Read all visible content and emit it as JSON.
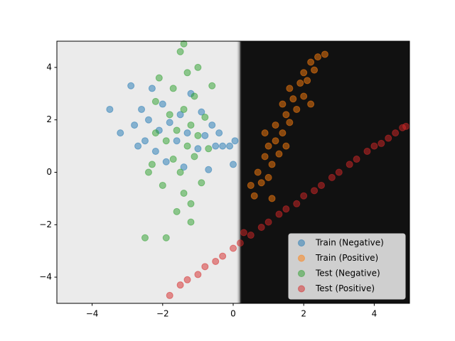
{
  "chart_data": {
    "type": "scatter",
    "xlim": [
      -5,
      5
    ],
    "ylim": [
      -5,
      5
    ],
    "xticks": [
      {
        "value": -4,
        "label": "−4"
      },
      {
        "value": -2,
        "label": "−2"
      },
      0,
      2,
      4
    ],
    "yticks": [
      {
        "value": -4,
        "label": "−4"
      },
      {
        "value": -2,
        "label": "−2"
      },
      0,
      2,
      4
    ],
    "legend": "lower right",
    "decision_boundary": 0.2,
    "region_colors": [
      "#ebebeb",
      "#111111"
    ],
    "series": [
      {
        "name": "Train (Negative)",
        "color": "#1f77b4",
        "x": [
          -3.5,
          -3.2,
          -2.9,
          -2.8,
          -2.6,
          -2.5,
          -2.4,
          -2.3,
          -2.2,
          -2.1,
          -2.0,
          -1.9,
          -1.8,
          -1.6,
          -1.5,
          -1.4,
          -1.3,
          -1.2,
          -1.0,
          -0.9,
          -0.8,
          -0.7,
          -0.6,
          -0.5,
          -0.4,
          -0.3,
          -0.1,
          0.0,
          0.05,
          -2.7
        ],
        "y": [
          2.4,
          1.5,
          3.3,
          1.8,
          2.4,
          1.2,
          2.0,
          3.2,
          0.8,
          1.6,
          2.6,
          0.4,
          1.9,
          1.2,
          2.2,
          0.2,
          1.5,
          3.0,
          0.9,
          2.3,
          1.4,
          0.1,
          1.8,
          1.0,
          1.5,
          1.0,
          1.0,
          0.3,
          1.2,
          1.0
        ]
      },
      {
        "name": "Train (Positive)",
        "color": "#ff7f0e",
        "x": [
          0.6,
          0.8,
          0.7,
          1.0,
          0.9,
          1.1,
          1.0,
          1.2,
          1.3,
          1.2,
          1.4,
          1.5,
          1.4,
          1.6,
          1.7,
          1.6,
          1.8,
          1.9,
          2.0,
          2.0,
          2.1,
          2.2,
          2.3,
          2.4,
          2.6,
          1.1,
          0.9,
          2.2,
          0.5,
          1.5
        ],
        "y": [
          -0.9,
          -0.4,
          0.0,
          -0.2,
          0.6,
          0.3,
          1.0,
          1.2,
          0.7,
          1.8,
          1.5,
          2.2,
          2.6,
          1.9,
          2.8,
          3.2,
          2.4,
          3.4,
          2.9,
          3.8,
          3.5,
          4.2,
          3.9,
          4.4,
          4.5,
          -1.0,
          1.5,
          2.6,
          -0.5,
          1.0
        ]
      },
      {
        "name": "Test (Negative)",
        "color": "#2ca02c",
        "x": [
          -2.5,
          -2.3,
          -2.2,
          -2.1,
          -2.0,
          -1.9,
          -1.9,
          -1.8,
          -1.7,
          -1.7,
          -1.6,
          -1.6,
          -1.5,
          -1.5,
          -1.4,
          -1.4,
          -1.3,
          -1.3,
          -1.2,
          -1.2,
          -1.1,
          -1.1,
          -1.0,
          -1.0,
          -0.9,
          -0.8,
          -0.7,
          -0.6,
          -1.4,
          -1.2,
          -2.4,
          -2.2
        ],
        "y": [
          -2.5,
          0.3,
          2.7,
          3.6,
          -0.5,
          1.2,
          -2.5,
          2.2,
          0.5,
          3.2,
          -1.5,
          1.6,
          4.6,
          0.0,
          2.4,
          -0.8,
          1.0,
          3.8,
          1.8,
          -1.2,
          2.9,
          0.6,
          4.0,
          1.4,
          -0.4,
          2.1,
          0.9,
          3.3,
          4.9,
          -1.9,
          0.0,
          1.5
        ]
      },
      {
        "name": "Test (Positive)",
        "color": "#d62728",
        "x": [
          -1.8,
          -1.5,
          -1.3,
          -1.0,
          -0.8,
          -0.5,
          -0.3,
          0.0,
          0.2,
          0.3,
          0.5,
          0.8,
          1.0,
          1.3,
          1.5,
          1.8,
          2.0,
          2.3,
          2.5,
          2.8,
          3.0,
          3.3,
          3.5,
          3.8,
          4.0,
          4.2,
          4.4,
          4.6,
          4.8,
          4.9
        ],
        "y": [
          -4.7,
          -4.3,
          -4.1,
          -3.9,
          -3.6,
          -3.4,
          -3.2,
          -2.9,
          -2.7,
          -2.3,
          -2.4,
          -2.1,
          -1.9,
          -1.6,
          -1.4,
          -1.2,
          -0.9,
          -0.7,
          -0.5,
          -0.2,
          0.0,
          0.3,
          0.5,
          0.8,
          1.0,
          1.1,
          1.3,
          1.5,
          1.7,
          1.75
        ]
      }
    ]
  }
}
